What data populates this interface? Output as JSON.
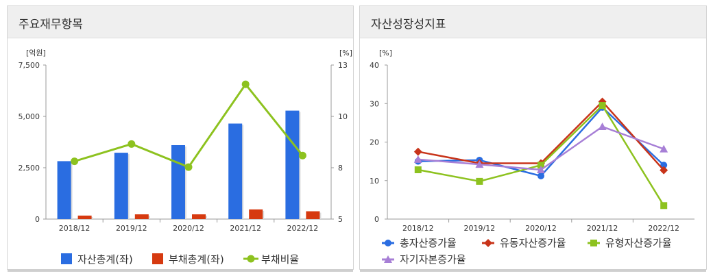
{
  "panels": [
    {
      "title": "주요재무항목"
    },
    {
      "title": "자산성장성지표"
    }
  ],
  "chart_data": [
    {
      "type": "bar",
      "categories": [
        "2018/12",
        "2019/12",
        "2020/12",
        "2021/12",
        "2022/12"
      ],
      "left_unit": "[억원]",
      "right_unit": "[%]",
      "y_left": {
        "ticks": [
          "0",
          "2,500",
          "5,000",
          "7,500"
        ],
        "range": [
          0,
          7500
        ]
      },
      "y_right": {
        "ticks": [
          "5",
          "8",
          "10",
          "13"
        ],
        "range": [
          5,
          13
        ]
      },
      "series": [
        {
          "name": "자산총계(좌)",
          "type": "bar",
          "axis": "left",
          "color": "#2a6de1",
          "values": [
            2820,
            3230,
            3600,
            4650,
            5280
          ]
        },
        {
          "name": "부채총계(좌)",
          "type": "bar",
          "axis": "left",
          "color": "#d63a10",
          "values": [
            170,
            230,
            230,
            470,
            380
          ]
        },
        {
          "name": "부채비율",
          "type": "line",
          "axis": "right",
          "color": "#8dc21f",
          "values": [
            8.0,
            8.9,
            7.7,
            12.0,
            8.3
          ]
        }
      ],
      "legend": "bottom"
    },
    {
      "type": "line",
      "categories": [
        "2018/12",
        "2019/12",
        "2020/12",
        "2021/12",
        "2022/12"
      ],
      "unit": "[%]",
      "y": {
        "ticks": [
          "0",
          "10",
          "20",
          "30",
          "40"
        ],
        "range": [
          0,
          40
        ]
      },
      "series": [
        {
          "name": "총자산증가율",
          "color": "#2a6de1",
          "marker": "circle",
          "values": [
            15.0,
            15.3,
            11.2,
            29.0,
            14.0
          ]
        },
        {
          "name": "유동자산증가율",
          "color": "#c8341a",
          "marker": "diamond",
          "values": [
            17.5,
            14.5,
            14.5,
            30.5,
            12.7
          ]
        },
        {
          "name": "유형자산증가율",
          "color": "#8dc21f",
          "marker": "square",
          "values": [
            12.8,
            9.8,
            14.0,
            29.5,
            3.5
          ]
        },
        {
          "name": "자기자본증가율",
          "color": "#a77fd6",
          "marker": "triangle",
          "values": [
            15.5,
            14.2,
            12.8,
            24.0,
            18.2
          ]
        }
      ],
      "legend": "bottom"
    }
  ]
}
